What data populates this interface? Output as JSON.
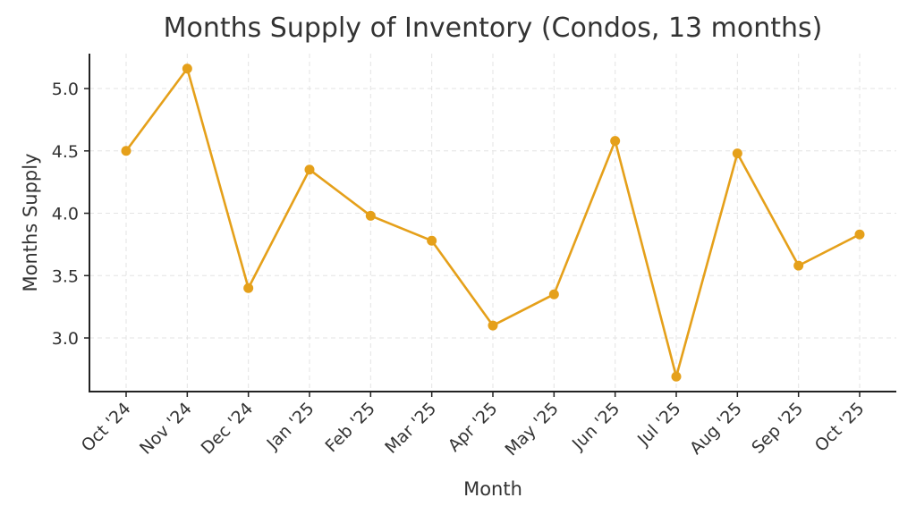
{
  "chart_data": {
    "type": "line",
    "title": "Months Supply of Inventory (Condos, 13 months)",
    "xlabel": "Month",
    "ylabel": "Months Supply",
    "categories": [
      "Oct '24",
      "Nov '24",
      "Dec '24",
      "Jan '25",
      "Feb '25",
      "Mar '25",
      "Apr '25",
      "May '25",
      "Jun '25",
      "Jul '25",
      "Aug '25",
      "Sep '25",
      "Oct '25"
    ],
    "series": [
      {
        "name": "Months Supply",
        "values": [
          4.5,
          5.16,
          3.4,
          4.35,
          3.98,
          3.78,
          3.1,
          3.35,
          4.58,
          2.69,
          4.48,
          3.58,
          3.83
        ],
        "color": "#E5A01A"
      }
    ],
    "yticks": [
      3.0,
      3.5,
      4.0,
      4.5,
      5.0
    ],
    "ytick_labels": [
      "3.0",
      "3.5",
      "4.0",
      "4.5",
      "5.0"
    ],
    "ylim": [
      2.57,
      5.28
    ],
    "grid": true,
    "legend": "none"
  }
}
